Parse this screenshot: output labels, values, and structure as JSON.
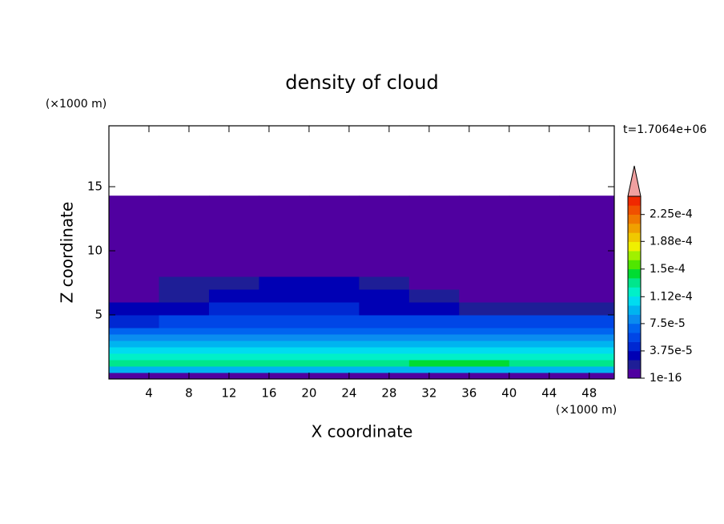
{
  "chart_data": {
    "type": "contour",
    "title": "density of cloud",
    "x_label": "X coordinate",
    "y_label": "Z coordinate",
    "x_unit": "(×1000 m)",
    "y_unit": "(×1000 m)",
    "time_label": "t=1.7064e+06",
    "xlim": [
      0,
      50.5
    ],
    "ylim": [
      0,
      19.75
    ],
    "xticks": [
      4,
      8,
      12,
      16,
      20,
      24,
      28,
      32,
      36,
      40,
      44,
      48
    ],
    "yticks": [
      5,
      10,
      15
    ],
    "xbins": [
      0,
      5,
      10,
      15,
      20,
      25,
      30,
      35,
      40,
      45,
      50.5
    ],
    "zbins": [
      0,
      0.5,
      1,
      1.5,
      2,
      2.5,
      3,
      3.5,
      4,
      5,
      6,
      7,
      8,
      10,
      14.3
    ],
    "values": [
      [
        1e-05,
        1e-05,
        1e-05,
        1e-05,
        1e-05,
        1e-05,
        1e-05,
        1e-05,
        1e-05,
        1e-05
      ],
      [
        9e-05,
        9e-05,
        9e-05,
        9e-05,
        9e-05,
        9e-05,
        9e-05,
        9e-05,
        9e-05,
        9e-05
      ],
      [
        0.00013,
        0.00013,
        0.00013,
        0.00013,
        0.00013,
        0.00013,
        0.00014,
        0.00014,
        0.00013,
        0.00013
      ],
      [
        0.00012,
        0.00012,
        0.00012,
        0.00012,
        0.00012,
        0.00012,
        0.00012,
        0.00012,
        0.00012,
        0.00012
      ],
      [
        0.000105,
        0.000105,
        0.000105,
        0.000105,
        0.000105,
        0.000105,
        0.000105,
        0.000105,
        0.000105,
        0.000105
      ],
      [
        9.5e-05,
        9.5e-05,
        9.5e-05,
        9.5e-05,
        9.5e-05,
        9.5e-05,
        9.5e-05,
        9.5e-05,
        9.5e-05,
        9.5e-05
      ],
      [
        8e-05,
        8e-05,
        8e-05,
        8e-05,
        8e-05,
        8e-05,
        8e-05,
        8e-05,
        8e-05,
        8e-05
      ],
      [
        6.5e-05,
        6.5e-05,
        6.5e-05,
        6.5e-05,
        6.5e-05,
        6.5e-05,
        6.5e-05,
        6.5e-05,
        6.5e-05,
        6.5e-05
      ],
      [
        4e-05,
        5e-05,
        5e-05,
        5e-05,
        5e-05,
        5e-05,
        5e-05,
        5e-05,
        5e-05,
        5e-05
      ],
      [
        2.5e-05,
        3.5e-05,
        4e-05,
        4e-05,
        4e-05,
        3.5e-05,
        2.5e-05,
        1.5e-05,
        2e-05,
        1.5e-05
      ],
      [
        1e-06,
        2e-05,
        3e-05,
        3.5e-05,
        3e-05,
        2.5e-05,
        1.5e-05,
        1e-06,
        1e-06,
        1e-06
      ],
      [
        1e-06,
        1.5e-05,
        2e-05,
        2.5e-05,
        2.5e-05,
        1.5e-05,
        1e-06,
        1e-06,
        1e-06,
        1e-06
      ],
      [
        1e-06,
        1e-06,
        1e-06,
        1e-06,
        1e-06,
        1e-06,
        1e-06,
        1e-06,
        1e-06,
        1e-06
      ],
      [
        1e-06,
        1e-06,
        1e-06,
        1e-06,
        1e-06,
        1e-06,
        1e-06,
        1e-06,
        1e-06,
        1e-06
      ]
    ],
    "colorbar_lim": [
      0,
      0.00025
    ],
    "colorbar_ticks": [
      {
        "value": 1e-16,
        "label": "1e-16"
      },
      {
        "value": 3.75e-05,
        "label": "3.75e-5"
      },
      {
        "value": 7.5e-05,
        "label": "7.5e-5"
      },
      {
        "value": 0.000112,
        "label": "1.12e-4"
      },
      {
        "value": 0.00015,
        "label": "1.5e-4"
      },
      {
        "value": 0.000188,
        "label": "1.88e-4"
      },
      {
        "value": 0.000225,
        "label": "2.25e-4"
      }
    ],
    "colors": [
      "#5000a0",
      "#1e1e96",
      "#0000b4",
      "#0028d2",
      "#0046e6",
      "#0064f0",
      "#0a8cf0",
      "#00b4f0",
      "#00dcf0",
      "#00f0c8",
      "#00e68c",
      "#00dc32",
      "#50e600",
      "#a0f000",
      "#f0f000",
      "#f0c800",
      "#f0a000",
      "#f07800",
      "#f05000",
      "#f02800"
    ],
    "extend_color": "#f0a0a0"
  }
}
